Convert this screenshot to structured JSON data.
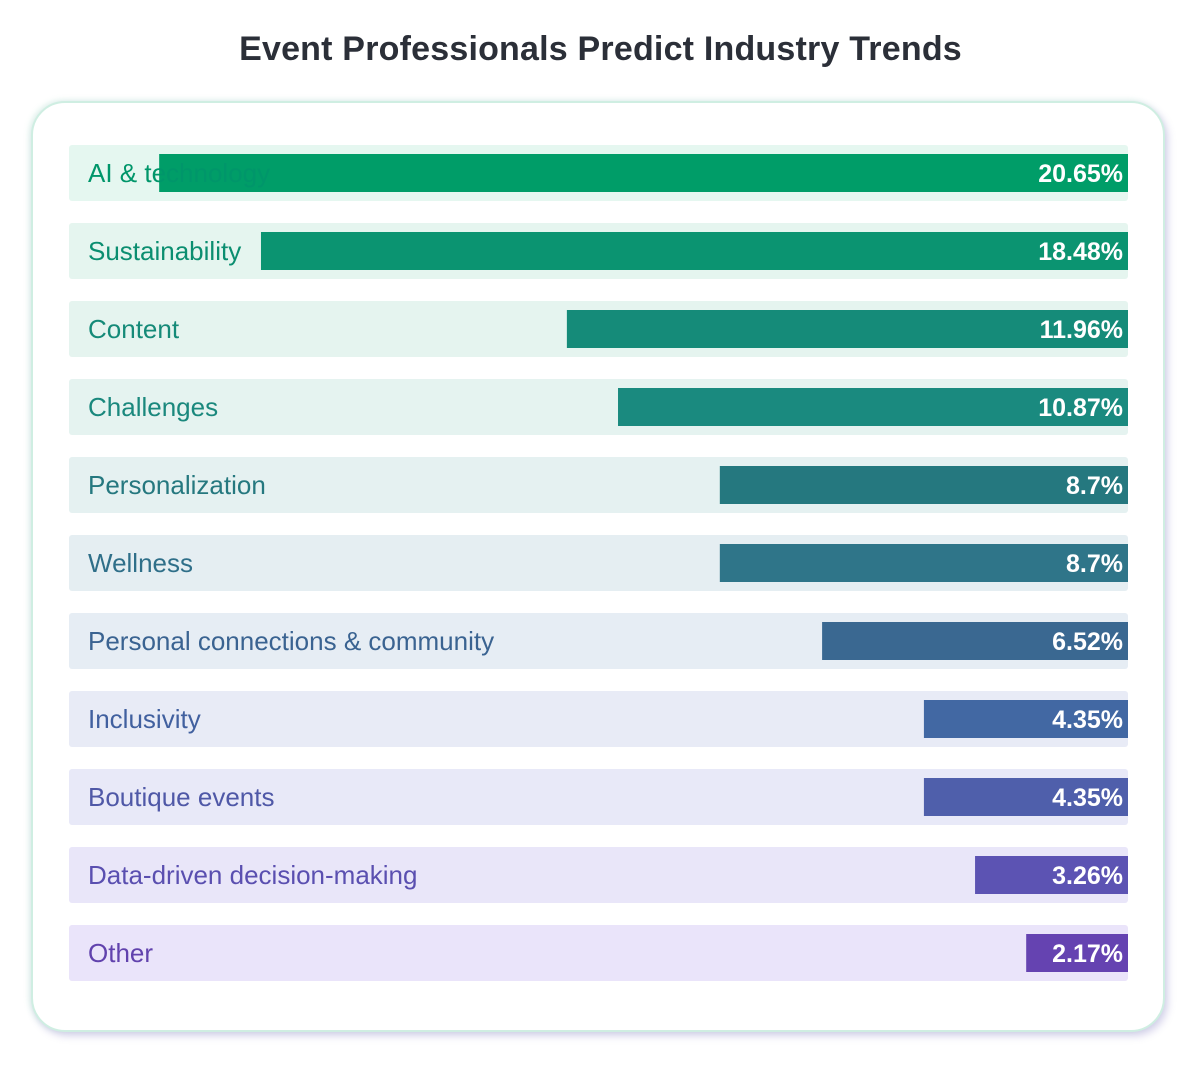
{
  "title": "Event Professionals Predict Industry Trends",
  "chart_data": {
    "type": "bar",
    "orientation": "horizontal",
    "title": "Event Professionals Predict Industry Trends",
    "categories": [
      "AI & technology",
      "Sustainability",
      "Content",
      "Challenges",
      "Personalization",
      "Wellness",
      "Personal connections & community",
      "Inclusivity",
      "Boutique events",
      "Data-driven decision-making",
      "Other"
    ],
    "values": [
      20.65,
      18.48,
      11.96,
      10.87,
      8.7,
      8.7,
      6.52,
      4.35,
      4.35,
      3.26,
      2.17
    ],
    "value_labels": [
      "20.65%",
      "18.48%",
      "11.96%",
      "10.87%",
      "8.7%",
      "8.7%",
      "6.52%",
      "4.35%",
      "4.35%",
      "3.26%",
      "2.17%"
    ],
    "unit": "%",
    "xlim": [
      0,
      22.38
    ],
    "grid": false,
    "bar_colors": [
      "#009d68",
      "#0b9471",
      "#158b79",
      "#1a8a7f",
      "#25787f",
      "#2f7589",
      "#3a6891",
      "#4268a3",
      "#4f5fab",
      "#5c53b3",
      "#6543b1"
    ],
    "row_background_colors": [
      "#e5f7f0",
      "#e5f5ef",
      "#e5f4ef",
      "#e5f3f0",
      "#e5f1f1",
      "#e5eef2",
      "#e6edf4",
      "#e8ebf6",
      "#e8e9f8",
      "#e9e6f9",
      "#eae4fa"
    ],
    "label_colors": [
      "#00966a",
      "#0b8e70",
      "#158a78",
      "#1a887d",
      "#25787f",
      "#2f6f89",
      "#3a6391",
      "#41609f",
      "#4f58a7",
      "#5a4fb0",
      "#6142ad"
    ]
  }
}
